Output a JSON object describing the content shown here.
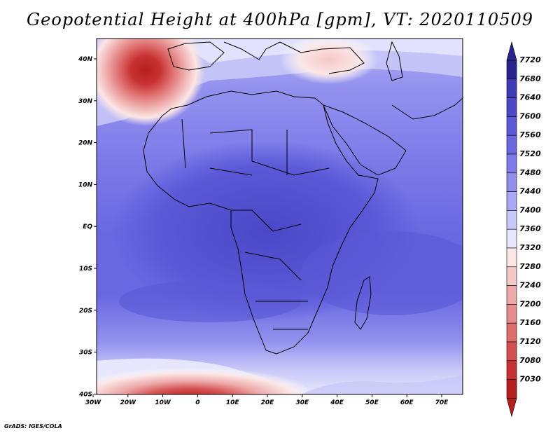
{
  "title": "Geopotential Height at 400hPa [gpm], VT: 2020110509",
  "footer": "GrADS: IGES/COLA",
  "map": {
    "lon_ticks": [
      "30W",
      "20W",
      "10W",
      "0",
      "10E",
      "20E",
      "30E",
      "40E",
      "50E",
      "60E",
      "70E"
    ],
    "lat_ticks": [
      "40N",
      "30N",
      "20N",
      "10N",
      "EQ",
      "10S",
      "20S",
      "30S",
      "40S"
    ]
  },
  "colorbar": {
    "levels": [
      "7720",
      "7680",
      "7640",
      "7600",
      "7560",
      "7520",
      "7480",
      "7440",
      "7400",
      "7360",
      "7320",
      "7280",
      "7240",
      "7200",
      "7160",
      "7120",
      "7080",
      "7030"
    ],
    "colors": [
      "#28248c",
      "#3c3ab4",
      "#4a48c8",
      "#5a58d6",
      "#6a68e0",
      "#7c7ae8",
      "#9290ee",
      "#aaa8f4",
      "#c8c8f8",
      "#e6e6fc",
      "#fbe6e6",
      "#f5c8c8",
      "#eeaaaa",
      "#e68c8c",
      "#de6e6e",
      "#d45050",
      "#c83232",
      "#b41e1e"
    ]
  }
}
